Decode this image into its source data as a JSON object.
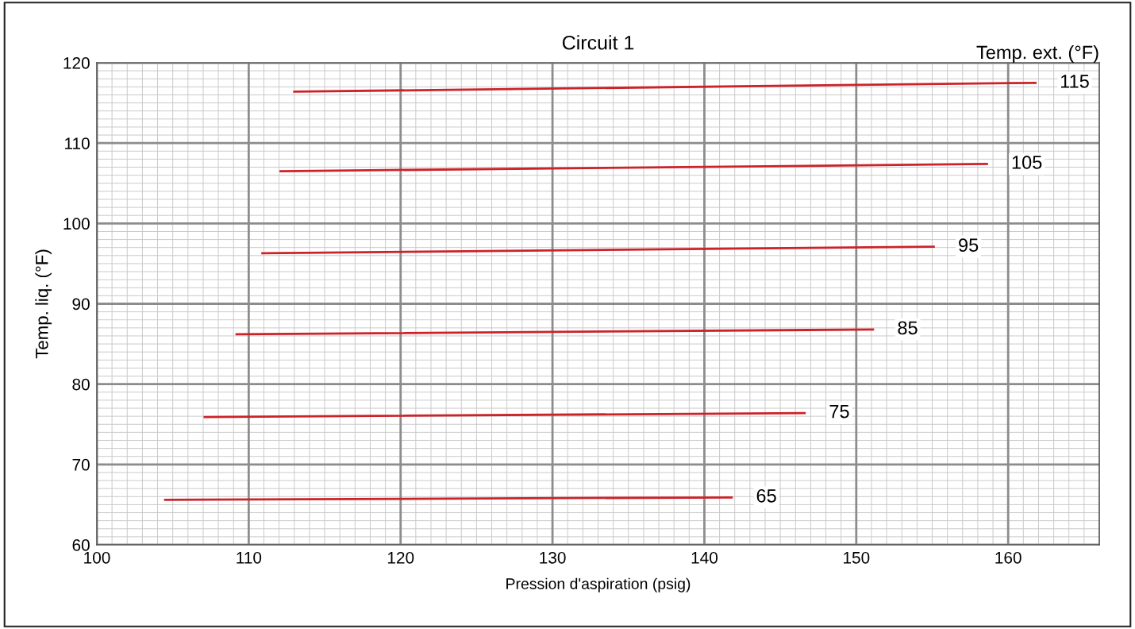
{
  "chart_data": {
    "type": "line",
    "title": "Circuit 1",
    "xlabel": "Pression d'aspiration (psig)",
    "ylabel": "Temp. liq. (°F)",
    "legend_title": "Temp. ext. (°F)",
    "xlim": [
      100,
      166
    ],
    "xticks": [
      100,
      110,
      120,
      130,
      140,
      150,
      160
    ],
    "ylim": [
      60,
      120
    ],
    "yticks": [
      60,
      70,
      80,
      90,
      100,
      110,
      120
    ],
    "grid": true,
    "marker": "none",
    "line_style": "solid",
    "series": [
      {
        "name": "115",
        "color": "#cc2229",
        "x": [
          113.0,
          161.8
        ],
        "values": [
          116.4,
          117.5
        ]
      },
      {
        "name": "105",
        "color": "#cc2229",
        "x": [
          112.1,
          158.6
        ],
        "values": [
          106.5,
          107.4
        ]
      },
      {
        "name": "95",
        "color": "#cc2229",
        "x": [
          110.9,
          155.1
        ],
        "values": [
          96.3,
          97.1
        ]
      },
      {
        "name": "85",
        "color": "#cc2229",
        "x": [
          109.2,
          151.1
        ],
        "values": [
          86.2,
          86.8
        ]
      },
      {
        "name": "75",
        "color": "#cc2229",
        "x": [
          107.1,
          146.6
        ],
        "values": [
          75.9,
          76.4
        ]
      },
      {
        "name": "65",
        "color": "#cc2229",
        "x": [
          104.5,
          141.8
        ],
        "values": [
          65.6,
          65.9
        ]
      }
    ]
  }
}
